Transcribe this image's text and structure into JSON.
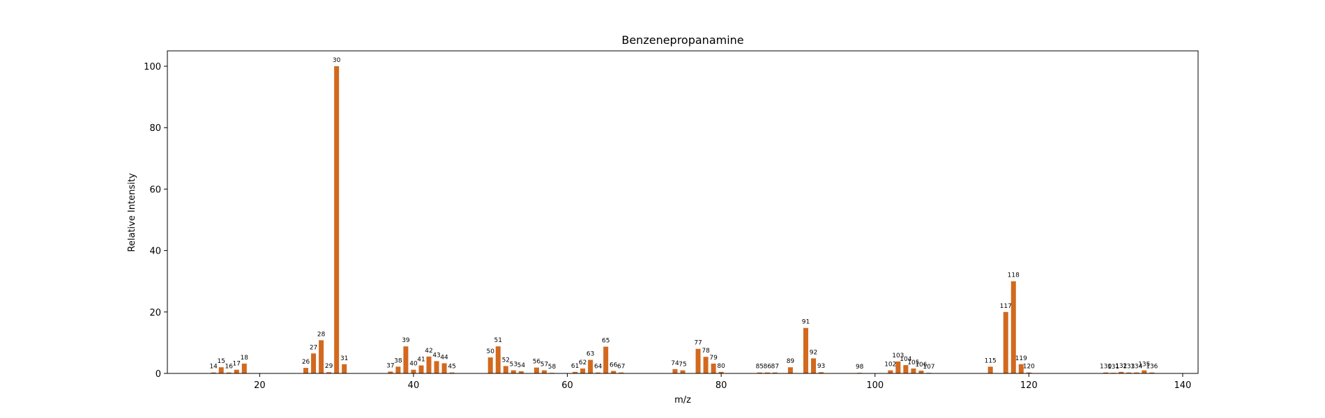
{
  "chart_data": {
    "type": "bar",
    "title": "Benzenepropanamine",
    "xlabel": "m/z",
    "ylabel": "Relative Intensity",
    "xlim": [
      8,
      142
    ],
    "ylim": [
      0,
      105
    ],
    "xticks": [
      20,
      40,
      60,
      80,
      100,
      120,
      140
    ],
    "yticks": [
      0,
      20,
      40,
      60,
      80,
      100
    ],
    "bar_color": "#D2691E",
    "grid": false,
    "peaks": [
      {
        "x": 14,
        "y": 0.3
      },
      {
        "x": 15,
        "y": 2.0
      },
      {
        "x": 16,
        "y": 0.3
      },
      {
        "x": 17,
        "y": 1.2
      },
      {
        "x": 18,
        "y": 3.2
      },
      {
        "x": 26,
        "y": 1.8
      },
      {
        "x": 27,
        "y": 6.5
      },
      {
        "x": 28,
        "y": 10.8
      },
      {
        "x": 29,
        "y": 0.4
      },
      {
        "x": 30,
        "y": 100
      },
      {
        "x": 31,
        "y": 3.0
      },
      {
        "x": 37,
        "y": 0.6
      },
      {
        "x": 38,
        "y": 2.2
      },
      {
        "x": 39,
        "y": 8.8
      },
      {
        "x": 40,
        "y": 1.2
      },
      {
        "x": 41,
        "y": 2.6
      },
      {
        "x": 42,
        "y": 5.5
      },
      {
        "x": 43,
        "y": 4.0
      },
      {
        "x": 44,
        "y": 3.3
      },
      {
        "x": 45,
        "y": 0.3
      },
      {
        "x": 50,
        "y": 5.2
      },
      {
        "x": 51,
        "y": 8.8
      },
      {
        "x": 52,
        "y": 2.4
      },
      {
        "x": 53,
        "y": 1.0
      },
      {
        "x": 54,
        "y": 0.7
      },
      {
        "x": 56,
        "y": 1.9
      },
      {
        "x": 57,
        "y": 1.0
      },
      {
        "x": 58,
        "y": 0.2
      },
      {
        "x": 61,
        "y": 0.5
      },
      {
        "x": 62,
        "y": 1.6
      },
      {
        "x": 63,
        "y": 4.4
      },
      {
        "x": 64,
        "y": 0.3
      },
      {
        "x": 65,
        "y": 8.7
      },
      {
        "x": 66,
        "y": 0.8
      },
      {
        "x": 67,
        "y": 0.3
      },
      {
        "x": 74,
        "y": 1.4
      },
      {
        "x": 75,
        "y": 1.0
      },
      {
        "x": 77,
        "y": 8.0
      },
      {
        "x": 78,
        "y": 5.4
      },
      {
        "x": 79,
        "y": 3.2
      },
      {
        "x": 80,
        "y": 0.5
      },
      {
        "x": 85,
        "y": 0.3
      },
      {
        "x": 86,
        "y": 0.3
      },
      {
        "x": 87,
        "y": 0.3
      },
      {
        "x": 89,
        "y": 2.0
      },
      {
        "x": 91,
        "y": 14.8
      },
      {
        "x": 92,
        "y": 4.9
      },
      {
        "x": 93,
        "y": 0.4
      },
      {
        "x": 98,
        "y": 0.2
      },
      {
        "x": 102,
        "y": 1.0
      },
      {
        "x": 103,
        "y": 3.9
      },
      {
        "x": 104,
        "y": 2.7
      },
      {
        "x": 105,
        "y": 1.6
      },
      {
        "x": 106,
        "y": 0.9
      },
      {
        "x": 107,
        "y": 0.2
      },
      {
        "x": 115,
        "y": 2.2
      },
      {
        "x": 117,
        "y": 20.0
      },
      {
        "x": 118,
        "y": 30.0
      },
      {
        "x": 119,
        "y": 3.0
      },
      {
        "x": 120,
        "y": 0.3
      },
      {
        "x": 130,
        "y": 0.3
      },
      {
        "x": 131,
        "y": 0.2
      },
      {
        "x": 132,
        "y": 0.5
      },
      {
        "x": 133,
        "y": 0.3
      },
      {
        "x": 134,
        "y": 0.3
      },
      {
        "x": 135,
        "y": 1.0
      },
      {
        "x": 136,
        "y": 0.3
      }
    ]
  }
}
